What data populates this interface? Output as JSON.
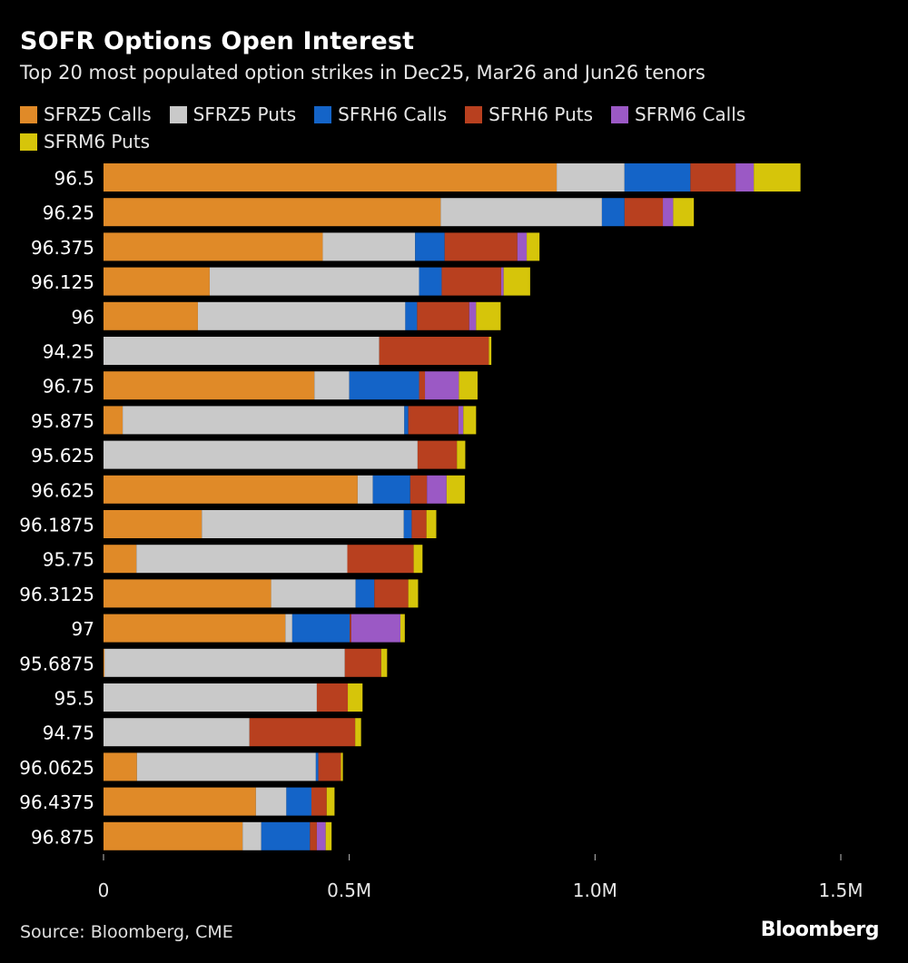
{
  "title": "SOFR Options Open Interest",
  "subtitle": "Top 20 most populated option strikes in Dec25, Mar26 and Jun26 tenors",
  "source": "Source: Bloomberg, CME",
  "brand": "Bloomberg",
  "chart_data": {
    "type": "bar",
    "orientation": "horizontal",
    "stacked": true,
    "title": "SOFR Options Open Interest",
    "subtitle": "Top 20 most populated option strikes in Dec25, Mar26 and Jun26 tenors",
    "xlabel": "",
    "ylabel": "",
    "xlim": [
      0,
      1500000
    ],
    "xticks": [
      0,
      500000,
      1000000,
      1500000
    ],
    "xtick_labels": [
      "0",
      "0.5M",
      "1.0M",
      "1.5M"
    ],
    "grid": false,
    "legend_position": "top",
    "categories": [
      "96.5",
      "96.25",
      "96.375",
      "96.125",
      "96",
      "94.25",
      "96.75",
      "95.875",
      "95.625",
      "96.625",
      "96.1875",
      "95.75",
      "96.3125",
      "97",
      "95.6875",
      "95.5",
      "94.75",
      "96.0625",
      "96.4375",
      "96.875"
    ],
    "series": [
      {
        "name": "SFRZ5 Calls",
        "color": "#e08a28",
        "values": [
          922000,
          686000,
          446000,
          216000,
          192000,
          0,
          429000,
          39000,
          0,
          517000,
          200000,
          67000,
          341000,
          370000,
          2000,
          0,
          0,
          68000,
          310000,
          283000
        ]
      },
      {
        "name": "SFRZ5 Puts",
        "color": "#c9c9c9",
        "values": [
          138000,
          328000,
          188000,
          426000,
          422000,
          561000,
          71000,
          573000,
          639000,
          31000,
          411000,
          429000,
          172000,
          14000,
          489000,
          434000,
          297000,
          364000,
          62000,
          38000
        ]
      },
      {
        "name": "SFRH6 Calls",
        "color": "#1464c8",
        "values": [
          134000,
          46000,
          60000,
          46000,
          24000,
          0,
          142000,
          8000,
          0,
          76000,
          16000,
          0,
          38000,
          117000,
          0,
          0,
          0,
          5000,
          51000,
          99000
        ]
      },
      {
        "name": "SFRH6 Puts",
        "color": "#b8401f",
        "values": [
          92000,
          78000,
          148000,
          121000,
          106000,
          223000,
          12000,
          102000,
          80000,
          34000,
          30000,
          135000,
          69000,
          3000,
          74000,
          63000,
          215000,
          46000,
          31000,
          14000
        ]
      },
      {
        "name": "SFRM6 Calls",
        "color": "#9b59c5",
        "values": [
          37000,
          21000,
          19000,
          5000,
          14000,
          0,
          69000,
          10000,
          0,
          40000,
          0,
          0,
          0,
          100000,
          0,
          0,
          0,
          0,
          0,
          18000
        ]
      },
      {
        "name": "SFRM6 Puts",
        "color": "#d6c50a",
        "values": [
          95000,
          42000,
          26000,
          54000,
          50000,
          5000,
          38000,
          26000,
          17000,
          37000,
          20000,
          18000,
          20000,
          9000,
          12000,
          30000,
          12000,
          4000,
          16000,
          12000
        ]
      }
    ]
  }
}
